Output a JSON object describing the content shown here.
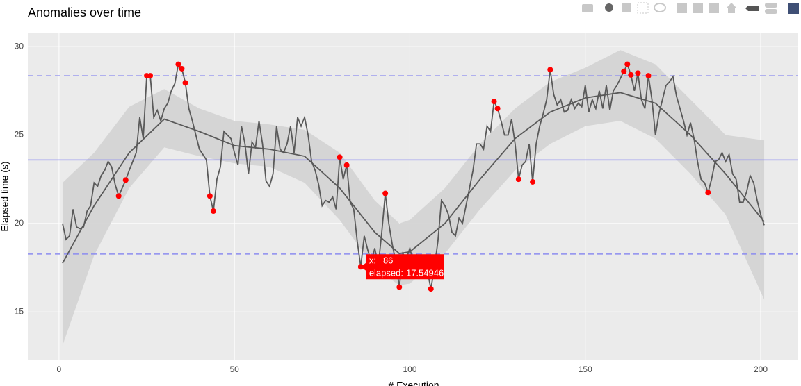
{
  "chart_data": {
    "type": "line",
    "title": "Anomalies over time",
    "x_label": "# Execution",
    "y_label": "Elapsed time (s)",
    "xlim": [
      -8.9,
      210.7
    ],
    "ylim": [
      12.3,
      30.75
    ],
    "xticks": [
      0,
      50,
      100,
      150,
      200
    ],
    "yticks": [
      15,
      20,
      25,
      30
    ],
    "grid": true,
    "x": [
      1,
      2,
      3,
      4,
      5,
      6,
      7,
      8,
      9,
      10,
      11,
      12,
      13,
      14,
      15,
      16,
      17,
      18,
      19,
      20,
      21,
      22,
      23,
      24,
      25,
      26,
      27,
      28,
      29,
      30,
      31,
      32,
      33,
      34,
      35,
      36,
      37,
      38,
      39,
      40,
      41,
      42,
      43,
      44,
      45,
      46,
      47,
      48,
      49,
      50,
      51,
      52,
      53,
      54,
      55,
      56,
      57,
      58,
      59,
      60,
      61,
      62,
      63,
      64,
      65,
      66,
      67,
      68,
      69,
      70,
      71,
      72,
      73,
      74,
      75,
      76,
      77,
      78,
      79,
      80,
      81,
      82,
      83,
      84,
      85,
      86,
      87,
      88,
      89,
      90,
      91,
      92,
      93,
      94,
      95,
      96,
      97,
      98,
      99,
      100,
      101,
      102,
      103,
      104,
      105,
      106,
      107,
      108,
      109,
      110,
      111,
      112,
      113,
      114,
      115,
      116,
      117,
      118,
      119,
      120,
      121,
      122,
      123,
      124,
      125,
      126,
      127,
      128,
      129,
      130,
      131,
      132,
      133,
      134,
      135,
      136,
      137,
      138,
      139,
      140,
      141,
      142,
      143,
      144,
      145,
      146,
      147,
      148,
      149,
      150,
      151,
      152,
      153,
      154,
      155,
      156,
      157,
      158,
      159,
      160,
      161,
      162,
      163,
      164,
      165,
      166,
      167,
      168,
      169,
      170,
      171,
      172,
      173,
      174,
      175,
      176,
      177,
      178,
      179,
      180,
      181,
      182,
      183,
      184,
      185,
      186,
      187,
      188,
      189,
      190,
      191,
      192,
      193,
      194,
      195,
      196,
      197,
      198,
      199,
      200,
      201
    ],
    "series": [
      {
        "name": "elapsed",
        "color": "#595959",
        "values": [
          20.0,
          19.1,
          19.3,
          20.8,
          19.8,
          19.7,
          19.8,
          20.7,
          21.0,
          22.3,
          22.1,
          22.7,
          23.0,
          23.5,
          23.2,
          22.2,
          21.55,
          22.0,
          22.45,
          23.0,
          23.5,
          24.0,
          26.0,
          24.8,
          28.35,
          28.35,
          26.0,
          26.4,
          25.8,
          26.5,
          26.8,
          27.5,
          27.9,
          29.0,
          28.75,
          27.95,
          26.5,
          25.8,
          25.0,
          24.2,
          23.9,
          23.6,
          21.55,
          20.7,
          22.5,
          23.2,
          25.2,
          25.0,
          24.8,
          24.0,
          23.3,
          25.5,
          24.5,
          22.8,
          24.6,
          24.3,
          25.8,
          24.5,
          22.4,
          22.1,
          22.8,
          25.5,
          24.2,
          24.0,
          24.5,
          25.5,
          24.0,
          26.0,
          25.5,
          26.0,
          25.0,
          23.5,
          23.0,
          22.2,
          21.0,
          21.3,
          21.2,
          21.5,
          20.8,
          23.75,
          22.5,
          23.3,
          21.2,
          20.8,
          19.0,
          17.55,
          19.3,
          18.5,
          17.8,
          18.6,
          17.6,
          19.5,
          21.7,
          20.0,
          18.8,
          17.8,
          16.4,
          18.3,
          18.0,
          18.6,
          17.8,
          18.2,
          17.8,
          18.0,
          17.3,
          16.3,
          17.5,
          19.0,
          21.3,
          21.0,
          20.5,
          19.5,
          19.3,
          20.3,
          20.0,
          21.0,
          22.0,
          23.0,
          24.5,
          24.5,
          24.2,
          25.5,
          25.2,
          26.9,
          26.5,
          25.8,
          25.0,
          25.0,
          25.9,
          24.5,
          22.5,
          23.3,
          23.5,
          24.5,
          22.35,
          24.5,
          25.5,
          26.2,
          27.0,
          28.7,
          27.3,
          26.7,
          27.0,
          26.3,
          26.4,
          27.0,
          26.5,
          26.8,
          26.6,
          27.8,
          26.3,
          27.0,
          26.5,
          27.5,
          26.5,
          27.8,
          26.4,
          27.5,
          27.8,
          28.2,
          28.6,
          29.0,
          28.4,
          27.5,
          28.5,
          27.0,
          26.5,
          28.35,
          27.0,
          25.0,
          26.2,
          27.0,
          27.8,
          28.0,
          28.3,
          27.2,
          26.5,
          25.8,
          25.0,
          25.7,
          24.8,
          23.5,
          22.5,
          22.3,
          21.75,
          22.5,
          23.5,
          23.6,
          24.0,
          23.5,
          23.9,
          22.8,
          22.5,
          21.2,
          21.2,
          21.8,
          22.7,
          22.3,
          21.3,
          20.5,
          19.9
        ]
      }
    ],
    "anomalies": {
      "color": "#ff0000",
      "x": [
        17,
        19,
        25,
        26,
        34,
        35,
        36,
        43,
        44,
        80,
        82,
        86,
        93,
        97,
        106,
        124,
        125,
        131,
        135,
        140,
        161,
        162,
        163,
        165,
        168,
        185
      ],
      "values": [
        21.55,
        22.45,
        28.35,
        28.35,
        29.0,
        28.75,
        27.95,
        21.55,
        20.7,
        23.75,
        23.3,
        17.55,
        21.7,
        16.4,
        16.3,
        26.9,
        26.5,
        22.5,
        22.35,
        28.7,
        28.6,
        29.0,
        28.4,
        28.5,
        28.35,
        21.75
      ]
    },
    "smooth": {
      "color": "#595959",
      "x": [
        1,
        10,
        20,
        30,
        40,
        50,
        60,
        70,
        80,
        90,
        97,
        100,
        110,
        120,
        130,
        140,
        150,
        160,
        170,
        180,
        190,
        201
      ],
      "values": [
        17.75,
        21.0,
        24.0,
        25.9,
        25.2,
        24.4,
        24.2,
        23.8,
        22.0,
        19.5,
        18.3,
        18.4,
        20.0,
        22.5,
        24.8,
        26.3,
        27.1,
        27.4,
        26.8,
        25.0,
        22.8,
        20.1
      ]
    },
    "band": {
      "color": "#d3d3d3",
      "x": [
        1,
        10,
        20,
        30,
        40,
        50,
        60,
        70,
        80,
        90,
        97,
        100,
        110,
        120,
        130,
        140,
        150,
        160,
        170,
        180,
        190,
        201
      ],
      "upper": [
        22.3,
        24.0,
        26.6,
        27.6,
        26.5,
        25.8,
        25.6,
        25.3,
        24.0,
        21.3,
        20.0,
        20.2,
        22.0,
        24.5,
        26.5,
        28.0,
        28.8,
        29.8,
        29.0,
        27.0,
        25.0,
        24.7
      ],
      "lower": [
        13.1,
        18.2,
        22.0,
        24.3,
        23.8,
        23.4,
        23.2,
        22.3,
        20.2,
        17.5,
        16.5,
        16.6,
        18.3,
        20.8,
        23.0,
        24.5,
        25.5,
        25.8,
        24.8,
        22.8,
        20.5,
        15.7
      ]
    },
    "hlines": [
      {
        "value": 23.59,
        "style": "solid",
        "color": "#8c8cf0"
      },
      {
        "value": 28.35,
        "style": "dashed",
        "color": "#8c8cf0"
      },
      {
        "value": 18.27,
        "style": "dashed",
        "color": "#8c8cf0"
      }
    ],
    "tooltip": {
      "x_label": "x:",
      "x": 86,
      "y_label": "elapsed:",
      "y": 17.54946,
      "color": "#ff0000"
    }
  }
}
